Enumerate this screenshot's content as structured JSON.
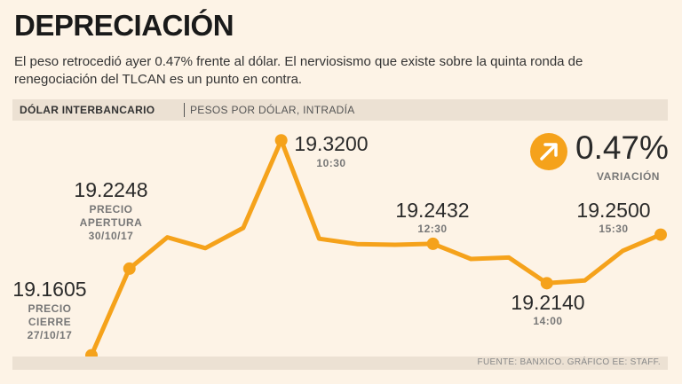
{
  "header": {
    "title": "DEPRECIACIÓN",
    "subtitle": "El peso retrocedió ayer 0.47% frente al dólar. El nerviosismo que existe sobre la quinta ronda de renegociación del TLCAN es un punto en contra."
  },
  "band": {
    "label": "DÓLAR INTERBANCARIO",
    "sub": "PESOS POR DÓLAR, INTRADÍA"
  },
  "variation": {
    "value": "0.47%",
    "label": "VARIACIÓN",
    "icon": "arrow-up-right-icon"
  },
  "footer": {
    "source": "FUENTE: BANXICO. GRÁFICO EE: STAFF."
  },
  "colors": {
    "accent": "#f5a21b",
    "background": "#fdf3e6",
    "band": "#ece1d3"
  },
  "chart_data": {
    "type": "line",
    "title": "DÓLAR INTERBANCARIO",
    "ylabel": "PESOS POR DÓLAR",
    "ylim": [
      19.155,
      19.33
    ],
    "series": [
      {
        "name": "Dólar interbancario",
        "values": [
          19.1605,
          19.2248,
          19.248,
          19.24,
          19.255,
          19.32,
          19.247,
          19.243,
          19.2425,
          19.2432,
          19.232,
          19.233,
          19.214,
          19.216,
          19.238,
          19.25
        ]
      }
    ],
    "annotations": [
      {
        "index": 0,
        "value": "19.1605",
        "lines": [
          "PRECIO",
          "CIERRE",
          "27/10/17"
        ]
      },
      {
        "index": 1,
        "value": "19.2248",
        "lines": [
          "PRECIO",
          "APERTURA",
          "30/10/17"
        ]
      },
      {
        "index": 5,
        "value": "19.3200",
        "lines": [
          "10:30"
        ]
      },
      {
        "index": 9,
        "value": "19.2432",
        "lines": [
          "12:30"
        ]
      },
      {
        "index": 12,
        "value": "19.2140",
        "lines": [
          "14:00"
        ]
      },
      {
        "index": 15,
        "value": "19.2500",
        "lines": [
          "15:30"
        ]
      }
    ]
  }
}
